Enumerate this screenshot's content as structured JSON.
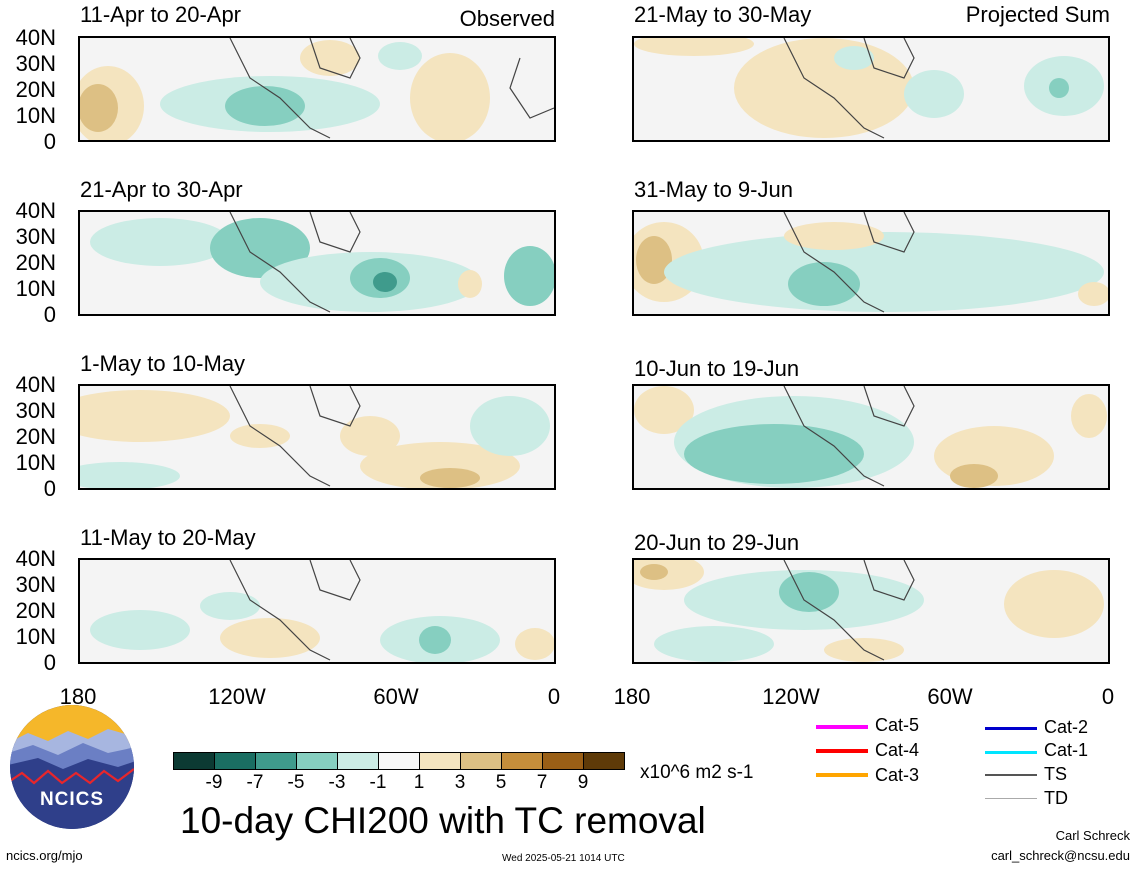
{
  "header": {
    "observed_label": "Observed",
    "projected_label": "Projected Sum"
  },
  "panels": [
    {
      "title": "11-Apr to 20-Apr"
    },
    {
      "title": "21-Apr to 30-Apr"
    },
    {
      "title": "1-May to 10-May"
    },
    {
      "title": "11-May to 20-May"
    },
    {
      "title": "21-May to 30-May"
    },
    {
      "title": "31-May to 9-Jun"
    },
    {
      "title": "10-Jun to 19-Jun"
    },
    {
      "title": "20-Jun to 29-Jun"
    }
  ],
  "axes": {
    "lat_labels": [
      "40N",
      "30N",
      "20N",
      "10N",
      "0"
    ],
    "lon_labels": [
      "180",
      "120W",
      "60W",
      "0"
    ]
  },
  "colorbar": {
    "labels": [
      "-9",
      "-7",
      "-5",
      "-3",
      "-1",
      "1",
      "3",
      "5",
      "7",
      "9"
    ],
    "units": "x10^6 m2 s-1",
    "colors": [
      "#0c3a33",
      "#1a6e62",
      "#3f9b8c",
      "#86cfc0",
      "#cbece5",
      "#f7f7f7",
      "#f4e4bf",
      "#ddc084",
      "#c58e3b",
      "#9a5f16",
      "#5e3a08"
    ]
  },
  "legend": {
    "items": [
      {
        "label": "Cat-5",
        "color": "#ff00ff"
      },
      {
        "label": "Cat-4",
        "color": "#ff0000"
      },
      {
        "label": "Cat-3",
        "color": "#ffa500"
      },
      {
        "label": "Cat-2",
        "color": "#0000cc"
      },
      {
        "label": "Cat-1",
        "color": "#00e5ff"
      },
      {
        "label": "TS",
        "color": "#555555"
      },
      {
        "label": "TD",
        "color": "#aaaaaa"
      }
    ]
  },
  "footer": {
    "title": "10-day CHI200 with TC removal",
    "logo_text": "NCICS",
    "url": "ncics.org/mjo",
    "timestamp": "Wed 2025-05-21 1014 UTC",
    "author": "Carl Schreck",
    "email": "carl_schreck@ncsu.edu"
  }
}
